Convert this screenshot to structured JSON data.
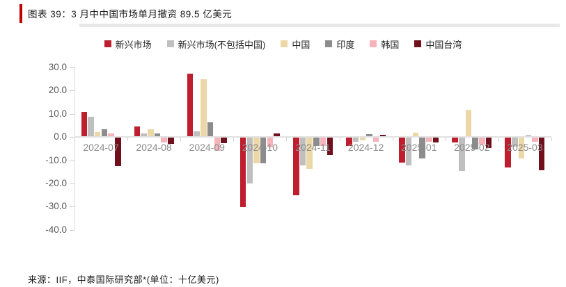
{
  "title": {
    "text": "图表 39：3 月中中国市场单月撤资 89.5 亿美元"
  },
  "footer": {
    "text": "来源：IIF，中泰国际研究部*(单位：十亿美元)"
  },
  "accent_color": "#C00000",
  "chart_data": {
    "type": "bar",
    "title": "3 月中中国市场单月撤资 89.5 亿美元",
    "unit": "十亿美元",
    "categories": [
      "2024-07",
      "2024-08",
      "2024-09",
      "2024-10",
      "2024-11",
      "2024-12",
      "2025-01",
      "2025-02",
      "2025-03"
    ],
    "series": [
      {
        "name": "新兴市场",
        "color": "#BE1E2D",
        "values": [
          10.6,
          4.4,
          27.1,
          -30.0,
          -24.8,
          -3.5,
          -10.6,
          -2.1,
          -12.9
        ]
      },
      {
        "name": "新兴市场(不包括中国)",
        "color": "#BFBFBF",
        "values": [
          8.5,
          1.4,
          2.2,
          -19.6,
          -11.8,
          -1.7,
          -12.0,
          -14.3,
          -3.7
        ]
      },
      {
        "name": "中国",
        "color": "#EBD8A6",
        "values": [
          1.9,
          3.0,
          24.6,
          -11.0,
          -13.3,
          -1.1,
          1.7,
          11.4,
          -9.0
        ]
      },
      {
        "name": "印度",
        "color": "#8C8C8C",
        "values": [
          3.2,
          1.2,
          5.9,
          -11.0,
          -3.6,
          1.1,
          -8.8,
          -5.0,
          0.3
        ]
      },
      {
        "name": "韩国",
        "color": "#F6B3BA",
        "values": [
          1.4,
          -2.1,
          -5.5,
          -4.0,
          -3.6,
          -1.7,
          -1.8,
          -3.0,
          -1.6
        ]
      },
      {
        "name": "中国台湾",
        "color": "#70101C",
        "values": [
          -12.3,
          -2.6,
          -2.3,
          1.4,
          -7.5,
          0.8,
          -2.1,
          -4.4,
          -14.0
        ]
      }
    ],
    "ylim": [
      -40,
      30
    ],
    "ytick_step": 10,
    "yticks": [
      "30.0",
      "20.0",
      "10.0",
      "0.0",
      "-10.0",
      "-20.0",
      "-30.0",
      "-40.0"
    ],
    "xlabel": "",
    "ylabel": "",
    "grid": false,
    "legend_position": "top"
  }
}
